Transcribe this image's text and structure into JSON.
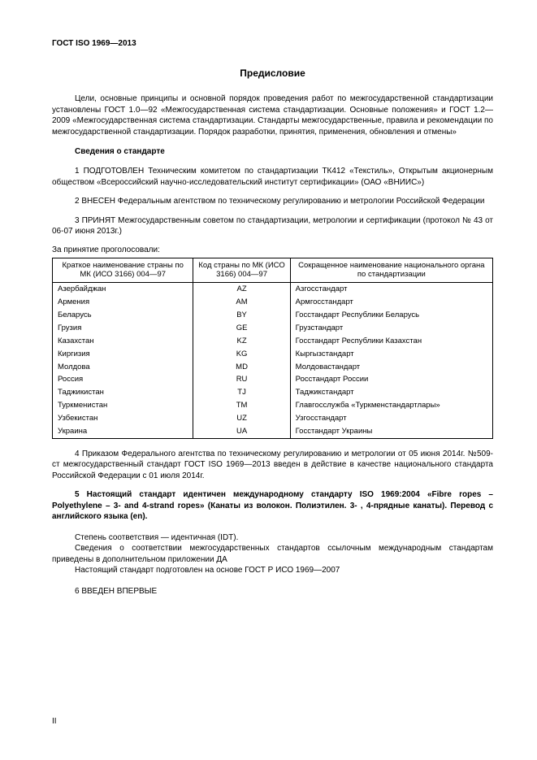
{
  "header_code": "ГОСТ ISO 1969—2013",
  "title": "Предисловие",
  "intro": "Цели, основные принципы и основной порядок проведения работ по межгосударственной стандартизации установлены ГОСТ 1.0—92 «Межгосударственная система стандартизации. Основные положения» и ГОСТ 1.2—2009 «Межгосударственная система стандартизации. Стандарты межгосударственные, правила и рекомендации по межгосударственной стандартизации. Порядок разработки, принятия, применения, обновления и отмены»",
  "section_heading": "Сведения о стандарте",
  "item1": "1 ПОДГОТОВЛЕН Техническим комитетом по стандартизации ТК412 «Текстиль», Открытым акционерным обществом «Всероссийский научно-исследовательский институт сертификации» (ОАО «ВНИИС»)",
  "item2": "2 ВНЕСЕН Федеральным агентством по техническому регулированию и метрологии Российской Федерации",
  "item3": "3 ПРИНЯТ Межгосударственным советом по стандартизации, метрологии и сертификации (протокол № 43 от 06-07 июня 2013г.)",
  "table_caption": "За принятие проголосовали:",
  "table": {
    "columns": [
      "Краткое наименование страны по МК (ИСО 3166) 004—97",
      "Код страны по МК (ИСО 3166) 004—97",
      "Сокращенное наименование национального органа по стандартизации"
    ],
    "col_widths": [
      "32%",
      "22%",
      "46%"
    ],
    "rows": [
      [
        "Азербайджан",
        "AZ",
        "Азгосстандарт"
      ],
      [
        "Армения",
        "AM",
        "Армгосстандарт"
      ],
      [
        "Беларусь",
        "BY",
        "Госстандарт Республики Беларусь"
      ],
      [
        "Грузия",
        "GE",
        "Грузстандарт"
      ],
      [
        "Казахстан",
        "KZ",
        "Госстандарт Республики Казахстан"
      ],
      [
        "Киргизия",
        "KG",
        "Кыргызстандарт"
      ],
      [
        "Молдова",
        "MD",
        "Молдовастандарт"
      ],
      [
        "Россия",
        "RU",
        "Росстандарт России"
      ],
      [
        "Таджикистан",
        "TJ",
        "Таджикстандарт"
      ],
      [
        "Туркменистан",
        "TM",
        "Главгосслужба «Туркменстандартлары»"
      ],
      [
        "Узбекистан",
        "UZ",
        "Узгосстандарт"
      ],
      [
        "Украина",
        "UA",
        "Госстандарт Украины"
      ]
    ]
  },
  "item4": "4 Приказом Федерального агентства по техническому регулированию и метрологии от 05 июня 2014г. №509-ст межгосударственный стандарт ГОСТ ISO 1969—2013 введен в действие в качестве национального стандарта Российской Федерации с 01 июля 2014г.",
  "item5_bold": "5 Настоящий стандарт идентичен международному стандарту ISO 1969:2004 «Fibre ropes – Polyethylene – 3- and 4-strand ropes» (Канаты из волокон. Полиэтилен. 3- , 4-прядные канаты). Перевод с английского языка (en).",
  "item5_line2": "Степень соответствия — идентичная (IDT).",
  "item5_line3": "Сведения о соответствии межгосударственных стандартов ссылочным международным стандартам приведены в дополнительном приложении ДА",
  "item5_line4": "Настоящий стандарт подготовлен на основе ГОСТ Р ИСО 1969—2007",
  "item6": "6 ВВЕДЕН ВПЕРВЫЕ",
  "page_num": "II"
}
